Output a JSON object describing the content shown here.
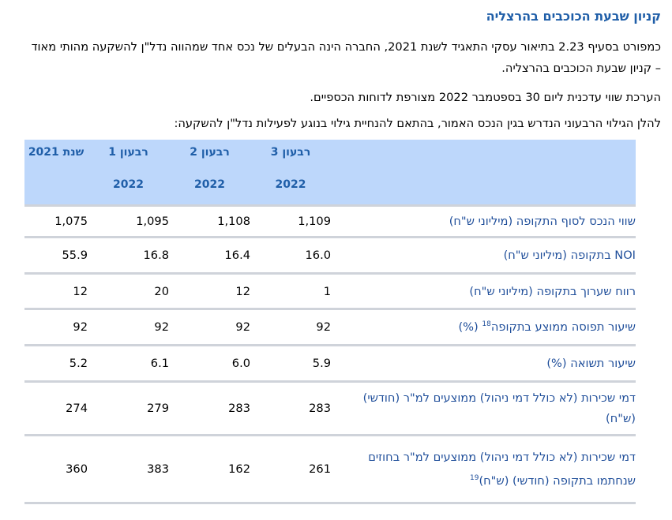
{
  "document": {
    "title": "קניון שבעת הכוכבים בהרצליה",
    "paragraph1": "כמפורט בסעיף 2.23 בתיאור עסקי התאגיד לשנת 2021, החברה הינה הבעלים של נכס אחד שמהווה נדל\"ן להשקעה מהותי מאוד – קניון שבעת הכוכבים בהרצליה.",
    "paragraph2": "הערכת שווי עדכנית ליום 30 בספטמבר 2022 מצורפת לדוחות הכספיים.",
    "paragraph3": "להלן הגילוי הרבעוני הנדרש בגין הנכס האמור, בהתאם להנחיית גילוי בנוגע לפעילות נדל\"ן להשקעה:"
  },
  "table": {
    "headers": [
      {
        "line1": "רבעון 3",
        "line2": "2022"
      },
      {
        "line1": "רבעון 2",
        "line2": "2022"
      },
      {
        "line1": "רבעון 1",
        "line2": "2022"
      },
      {
        "line1": "שנת 2021",
        "line2": ""
      }
    ],
    "rows": [
      {
        "label": "שווי הנכס לסוף התקופה (מיליוני ש\"ח)",
        "sup": "",
        "values": [
          "1,109",
          "1,108",
          "1,095",
          "1,075"
        ]
      },
      {
        "label": "NOI בתקופה (מיליוני ש\"ח)",
        "sup": "",
        "values": [
          "16.0",
          "16.4",
          "16.8",
          "55.9"
        ]
      },
      {
        "label": "רווח שערוך בתקופה (מיליוני ש\"ח)",
        "sup": "",
        "values": [
          "1",
          "12",
          "20",
          "12"
        ]
      },
      {
        "label": "שיעור תפוסה ממוצע בתקופה",
        "sup": "18",
        "suffix": " (%)",
        "values": [
          "92",
          "92",
          "92",
          "92"
        ]
      },
      {
        "label": "שיעור תשואה (%)",
        "sup": "",
        "values": [
          "5.9",
          "6.0",
          "6.1",
          "5.2"
        ]
      },
      {
        "label": "דמי שכירות (לא כולל דמי ניהול) ממוצעים למ\"ר (חודשי) (ש\"ח)",
        "sup": "",
        "values": [
          "283",
          "283",
          "279",
          "274"
        ]
      },
      {
        "label": "דמי שכירות (לא כולל דמי ניהול) ממוצעים למ\"ר בחוזים שנחתמו בתקופה (חודשי) (ש\"ח)",
        "sup": "19",
        "values": [
          "261",
          "162",
          "383",
          "360"
        ]
      }
    ]
  }
}
